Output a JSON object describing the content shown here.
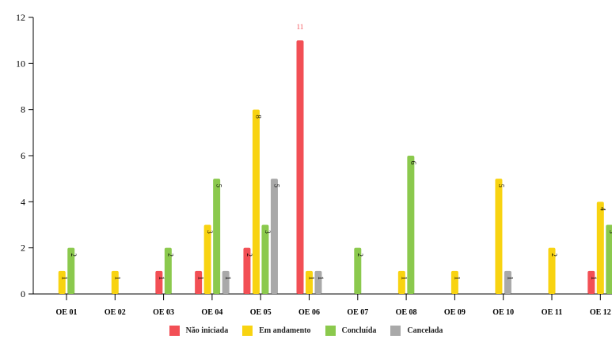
{
  "chart_data": {
    "type": "bar",
    "categories": [
      "OE 01",
      "OE 02",
      "OE 03",
      "OE 04",
      "OE 05",
      "OE 06",
      "OE 07",
      "OE 08",
      "OE 09",
      "OE 10",
      "OE 11",
      "OE 12"
    ],
    "series": [
      {
        "name": "Não iniciada",
        "color": "#f24f55",
        "values": [
          0,
          0,
          1,
          1,
          2,
          11,
          0,
          0,
          0,
          0,
          0,
          1
        ]
      },
      {
        "name": "Em andamento",
        "color": "#f8d311",
        "values": [
          1,
          1,
          0,
          3,
          8,
          1,
          0,
          1,
          1,
          5,
          2,
          4
        ]
      },
      {
        "name": "Concluída",
        "color": "#8bc94d",
        "values": [
          2,
          0,
          2,
          5,
          3,
          0,
          2,
          6,
          0,
          0,
          0,
          3
        ]
      },
      {
        "name": "Cancelada",
        "color": "#a9a9a9",
        "values": [
          0,
          0,
          0,
          1,
          5,
          1,
          0,
          0,
          0,
          1,
          0,
          0
        ]
      }
    ],
    "ylim": [
      0,
      12
    ],
    "yticks": [
      "0",
      "2",
      "4",
      "6",
      "8",
      "10",
      "12"
    ],
    "legend_position": "bottom",
    "grid": false
  }
}
